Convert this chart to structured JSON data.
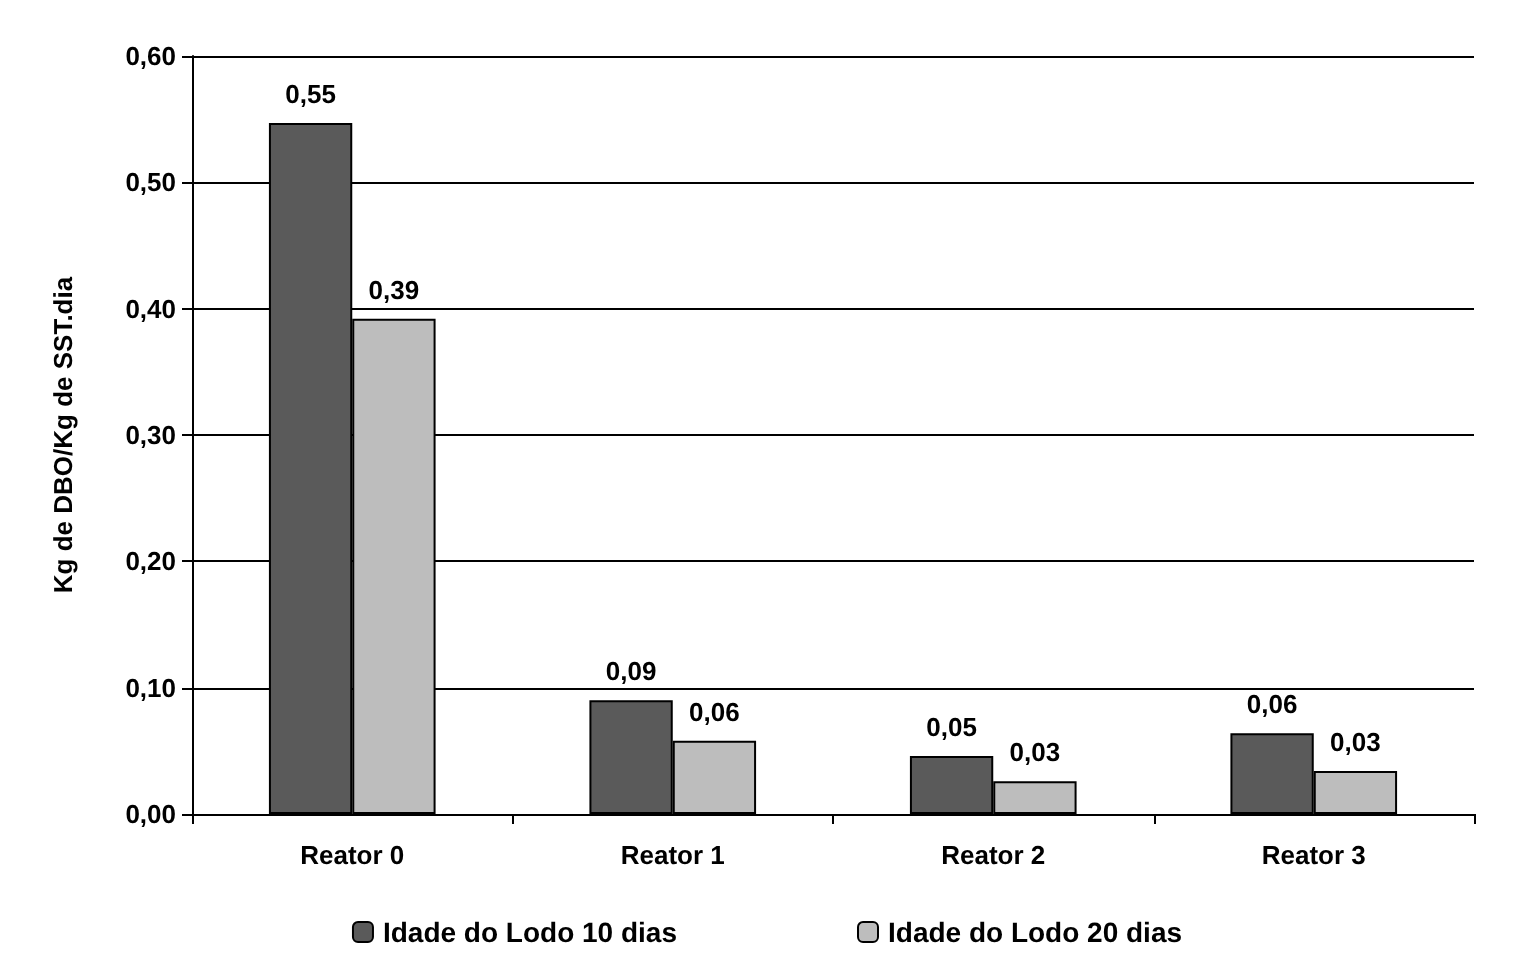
{
  "chart_data": {
    "type": "bar",
    "ylabel": "Kg de DBO/Kg de SST.dia",
    "categories": [
      "Reator 0",
      "Reator 1",
      "Reator 2",
      "Reator 3"
    ],
    "series": [
      {
        "name": "Idade do Lodo 10 dias",
        "color": "#5a5a5a",
        "values": [
          0.547,
          0.09,
          0.046,
          0.064
        ],
        "value_labels": [
          "0,55",
          "0,09",
          "0,05",
          "0,06"
        ]
      },
      {
        "name": "Idade do Lodo 20 dias",
        "color": "#bdbdbd",
        "values": [
          0.392,
          0.058,
          0.026,
          0.034
        ],
        "value_labels": [
          "0,39",
          "0,06",
          "0,03",
          "0,03"
        ]
      }
    ],
    "ylim": [
      0,
      0.6
    ],
    "yticks": [
      {
        "value": 0,
        "label": "0,00"
      },
      {
        "value": 0.1,
        "label": "0,10"
      },
      {
        "value": 0.2,
        "label": "0,20"
      },
      {
        "value": 0.3,
        "label": "0,30"
      },
      {
        "value": 0.4,
        "label": "0,40"
      },
      {
        "value": 0.5,
        "label": "0,50"
      },
      {
        "value": 0.6,
        "label": "0,60"
      }
    ],
    "grid": "y",
    "legend": "bottom"
  }
}
